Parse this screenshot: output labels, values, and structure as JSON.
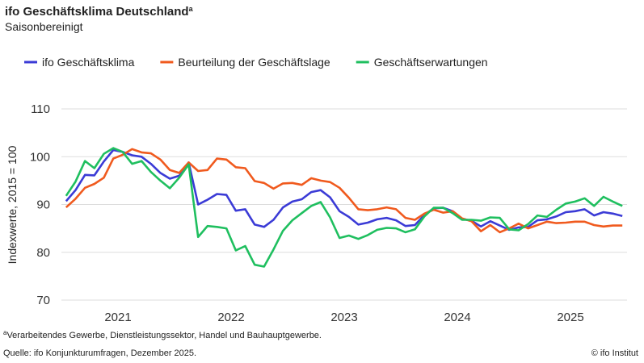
{
  "chart_data": {
    "type": "line",
    "title": "ifo Geschäftsklima Deutschland",
    "title_marker": "a",
    "subtitle": "Saisonbereinigt",
    "y_label": "Indexwerte, 2015 = 100",
    "categories": [
      null,
      null,
      null,
      null,
      null,
      null,
      "2021",
      null,
      null,
      null,
      null,
      null,
      null,
      null,
      null,
      null,
      null,
      null,
      "2022",
      null,
      null,
      null,
      null,
      null,
      null,
      null,
      null,
      null,
      null,
      null,
      "2023",
      null,
      null,
      null,
      null,
      null,
      null,
      null,
      null,
      null,
      null,
      null,
      "2024",
      null,
      null,
      null,
      null,
      null,
      null,
      null,
      null,
      null,
      null,
      null,
      "2025",
      null,
      null,
      null,
      null,
      null
    ],
    "ylim": [
      70,
      110
    ],
    "yticks": [
      70,
      80,
      90,
      100,
      110
    ],
    "grid": true,
    "series": [
      {
        "name": "ifo Geschäftsklima",
        "color": "#3b3bd6",
        "values": [
          90.7,
          93.0,
          96.2,
          96.1,
          99.0,
          101.4,
          101.0,
          100.3,
          100.0,
          98.5,
          96.6,
          95.4,
          96.0,
          98.8,
          90.0,
          91.0,
          92.2,
          92.0,
          88.7,
          89.0,
          85.8,
          85.3,
          86.8,
          89.4,
          90.6,
          91.1,
          92.6,
          93.0,
          91.5,
          88.6,
          87.4,
          85.8,
          86.2,
          86.9,
          87.2,
          86.7,
          85.5,
          85.7,
          87.8,
          89.2,
          89.3,
          88.6,
          87.0,
          86.6,
          85.4,
          86.5,
          85.6,
          84.7,
          85.2,
          85.3,
          86.7,
          86.9,
          87.5,
          88.4,
          88.6,
          89.0,
          87.7,
          88.4,
          88.1,
          87.6
        ]
      },
      {
        "name": "Beurteilung der Geschäftslage",
        "color": "#f05a1e",
        "values": [
          89.4,
          91.2,
          93.5,
          94.3,
          95.6,
          99.6,
          100.4,
          101.6,
          100.9,
          100.7,
          99.4,
          97.2,
          96.6,
          98.8,
          97.0,
          97.2,
          99.6,
          99.4,
          97.8,
          97.6,
          94.9,
          94.5,
          93.3,
          94.4,
          94.5,
          94.1,
          95.5,
          95.0,
          94.7,
          93.5,
          91.4,
          89.0,
          88.8,
          89.0,
          89.4,
          89.0,
          87.2,
          86.8,
          88.1,
          88.9,
          88.3,
          88.6,
          87.1,
          86.5,
          84.4,
          85.7,
          84.2,
          85.0,
          86.0,
          85.0,
          85.7,
          86.4,
          86.1,
          86.2,
          86.4,
          86.4,
          85.7,
          85.4,
          85.6,
          85.6
        ]
      },
      {
        "name": "Geschäftserwartungen",
        "color": "#1fbf5f",
        "values": [
          91.8,
          94.8,
          99.1,
          97.6,
          100.6,
          101.8,
          101.0,
          98.5,
          99.1,
          96.8,
          95.0,
          93.4,
          95.6,
          98.4,
          83.2,
          85.5,
          85.3,
          85.0,
          80.4,
          81.3,
          77.4,
          77.0,
          80.6,
          84.5,
          86.7,
          88.2,
          89.7,
          90.5,
          87.3,
          83.0,
          83.5,
          82.8,
          83.6,
          84.7,
          85.1,
          85.0,
          84.2,
          84.8,
          87.5,
          89.3,
          89.3,
          88.2,
          86.8,
          86.8,
          86.6,
          87.3,
          87.2,
          84.8,
          84.6,
          85.9,
          87.7,
          87.4,
          88.9,
          90.2,
          90.6,
          91.3,
          89.7,
          91.6,
          90.6,
          89.7
        ]
      }
    ],
    "footnote": {
      "marker": "a",
      "text": "Verarbeitendes Gewerbe, Dienstleistungssektor, Handel und Bauhauptgewerbe."
    },
    "source": "Quelle: ifo Konjunkturumfragen, Dezember 2025.",
    "credit": "© ifo Institut"
  }
}
